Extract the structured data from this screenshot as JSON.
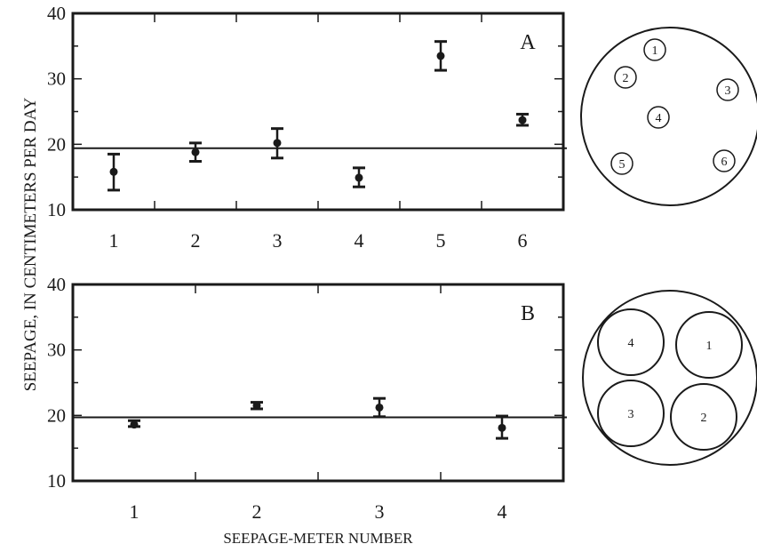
{
  "ylabel": "SEEPAGE, IN CENTIMETERS PER DAY",
  "xlabel": "SEEPAGE-METER NUMBER",
  "chart_data": [
    {
      "type": "scatter",
      "panel_label": "A",
      "xlabel": "SEEPAGE-METER NUMBER",
      "ylabel": "SEEPAGE, IN CENTIMETERS PER DAY",
      "ylim": [
        10,
        40
      ],
      "y_ticks": [
        10,
        20,
        30,
        40
      ],
      "categories": [
        "1",
        "2",
        "3",
        "4",
        "5",
        "6"
      ],
      "values": [
        15.8,
        18.8,
        20.2,
        14.9,
        33.5,
        23.7
      ],
      "error_low": [
        13.0,
        17.4,
        17.9,
        13.5,
        31.3,
        22.9
      ],
      "error_high": [
        18.5,
        20.2,
        22.4,
        16.4,
        35.7,
        24.6
      ],
      "reference_line": 19.4,
      "grid": false
    },
    {
      "type": "scatter",
      "panel_label": "B",
      "xlabel": "SEEPAGE-METER NUMBER",
      "ylabel": "SEEPAGE, IN CENTIMETERS PER DAY",
      "ylim": [
        10,
        40
      ],
      "y_ticks": [
        10,
        20,
        30,
        40
      ],
      "categories": [
        "1",
        "2",
        "3",
        "4"
      ],
      "values": [
        18.6,
        21.5,
        21.2,
        18.1
      ],
      "error_low": [
        18.3,
        21.0,
        19.8,
        16.5
      ],
      "error_high": [
        19.2,
        22.0,
        22.6,
        19.9
      ],
      "reference_line": 19.7,
      "grid": false
    }
  ],
  "diagrams": [
    {
      "labels": [
        "1",
        "2",
        "3",
        "4",
        "5",
        "6"
      ]
    },
    {
      "labels": [
        "4",
        "1",
        "3",
        "2"
      ]
    }
  ]
}
